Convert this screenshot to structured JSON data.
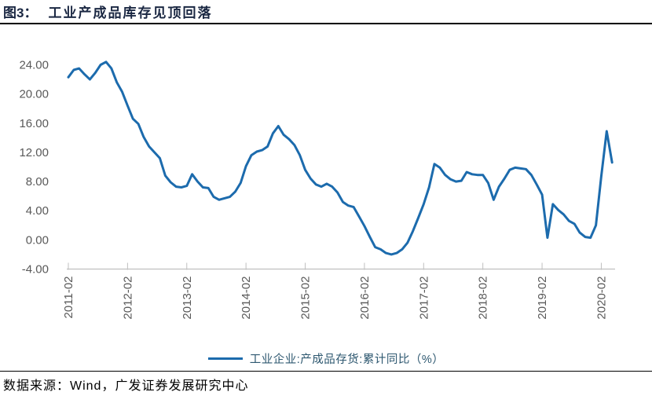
{
  "header": {
    "figure_label": "图3：",
    "title": "工业产成品库存见顶回落"
  },
  "footer": {
    "source": "数据来源：Wind，广发证券发展研究中心"
  },
  "colors": {
    "line": "#1c6bad",
    "axis_text": "#595959",
    "axis_line": "#bfbfbf",
    "title_text": "#1a2742",
    "legend_text": "#2e5870",
    "rule": "#000000"
  },
  "chart_data": {
    "type": "line",
    "title": "工业产成品库存见顶回落",
    "legend_position": "bottom",
    "grid": false,
    "ylim": [
      -4,
      24
    ],
    "y_ticks": [
      24,
      20,
      16,
      12,
      8,
      4,
      0,
      -4
    ],
    "y_tick_labels": [
      "24.00",
      "20.00",
      "16.00",
      "12.00",
      "8.00",
      "4.00",
      "0.00",
      "-4.00"
    ],
    "x_tick_labels": [
      "2011-02",
      "2012-02",
      "2013-02",
      "2014-02",
      "2015-02",
      "2016-02",
      "2017-02",
      "2018-02",
      "2019-02",
      "2020-02"
    ],
    "categories": [
      "2011-02",
      "2011-03",
      "2011-04",
      "2011-05",
      "2011-06",
      "2011-07",
      "2011-08",
      "2011-09",
      "2011-10",
      "2011-11",
      "2011-12",
      "2012-02",
      "2012-03",
      "2012-04",
      "2012-05",
      "2012-06",
      "2012-07",
      "2012-08",
      "2012-09",
      "2012-10",
      "2012-11",
      "2012-12",
      "2013-02",
      "2013-03",
      "2013-04",
      "2013-05",
      "2013-06",
      "2013-07",
      "2013-08",
      "2013-09",
      "2013-10",
      "2013-11",
      "2013-12",
      "2014-02",
      "2014-03",
      "2014-04",
      "2014-05",
      "2014-06",
      "2014-07",
      "2014-08",
      "2014-09",
      "2014-10",
      "2014-11",
      "2014-12",
      "2015-02",
      "2015-03",
      "2015-04",
      "2015-05",
      "2015-06",
      "2015-07",
      "2015-08",
      "2015-09",
      "2015-10",
      "2015-11",
      "2015-12",
      "2016-02",
      "2016-03",
      "2016-04",
      "2016-05",
      "2016-06",
      "2016-07",
      "2016-08",
      "2016-09",
      "2016-10",
      "2016-11",
      "2016-12",
      "2017-02",
      "2017-03",
      "2017-04",
      "2017-05",
      "2017-06",
      "2017-07",
      "2017-08",
      "2017-09",
      "2017-10",
      "2017-11",
      "2017-12",
      "2018-02",
      "2018-03",
      "2018-04",
      "2018-05",
      "2018-06",
      "2018-07",
      "2018-08",
      "2018-09",
      "2018-10",
      "2018-11",
      "2018-12",
      "2019-02",
      "2019-03",
      "2019-04",
      "2019-05",
      "2019-06",
      "2019-07",
      "2019-08",
      "2019-09",
      "2019-10",
      "2019-11",
      "2019-12",
      "2020-02",
      "2020-03",
      "2020-04"
    ],
    "series": [
      {
        "name": "工业企业:产成品存货:累计同比（%）",
        "color": "#1c6bad",
        "values": [
          22.3,
          23.3,
          23.5,
          22.7,
          22.0,
          22.9,
          24.0,
          24.4,
          23.5,
          21.6,
          20.3,
          18.4,
          16.6,
          15.9,
          14.1,
          12.8,
          12.0,
          11.2,
          8.8,
          7.9,
          7.3,
          7.2,
          7.4,
          9.0,
          8.0,
          7.2,
          7.1,
          5.9,
          5.5,
          5.7,
          5.9,
          6.6,
          7.8,
          10.1,
          11.6,
          12.1,
          12.3,
          12.8,
          14.6,
          15.6,
          14.4,
          13.8,
          13.0,
          11.6,
          9.6,
          8.4,
          7.6,
          7.3,
          7.7,
          7.3,
          6.5,
          5.2,
          4.7,
          4.5,
          3.2,
          1.9,
          0.4,
          -1.0,
          -1.3,
          -1.8,
          -2.0,
          -1.8,
          -1.3,
          -0.4,
          1.2,
          3.0,
          4.9,
          7.2,
          10.4,
          9.9,
          8.9,
          8.3,
          8.0,
          8.1,
          9.3,
          9.0,
          8.9,
          8.9,
          7.8,
          5.5,
          7.3,
          8.4,
          9.6,
          9.9,
          9.8,
          9.7,
          8.9,
          7.6,
          6.2,
          0.3,
          4.9,
          4.1,
          3.5,
          2.6,
          2.2,
          1.0,
          0.4,
          0.3,
          2.0,
          8.7,
          14.9,
          10.6
        ]
      }
    ]
  }
}
